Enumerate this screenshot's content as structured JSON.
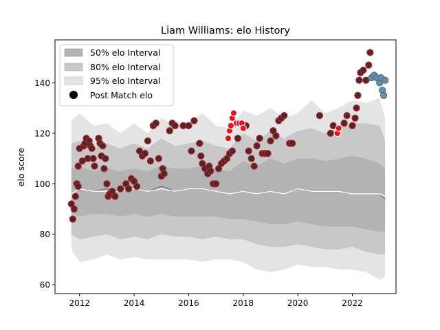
{
  "chart_data": {
    "type": "scatter",
    "title": "Liam Williams: elo History",
    "xlabel": "",
    "ylabel": "elo score",
    "xlim": [
      2011.1,
      2023.6
    ],
    "ylim": [
      56.5,
      157
    ],
    "x_ticks": [
      2012,
      2014,
      2016,
      2018,
      2020,
      2022
    ],
    "x_tick_labels": [
      "2012",
      "2014",
      "2016",
      "2018",
      "2020",
      "2022"
    ],
    "y_ticks": [
      60,
      80,
      100,
      120,
      140
    ],
    "y_tick_labels": [
      "60",
      "80",
      "100",
      "120",
      "140"
    ],
    "grid": false,
    "legend": {
      "placement": "top-left",
      "entries": [
        {
          "label": "50% elo Interval",
          "color": "#b3b3b3"
        },
        {
          "label": "80% elo Interval",
          "color": "#c8c8c8"
        },
        {
          "label": "95% elo Interval",
          "color": "#e4e4e4"
        },
        {
          "label": "Post Match elo",
          "color": "#000000"
        }
      ]
    },
    "bands": {
      "x": [
        2011.7,
        2012.0,
        2012.5,
        2013.0,
        2013.5,
        2014.0,
        2014.5,
        2015.0,
        2015.5,
        2016.0,
        2016.5,
        2017.0,
        2017.5,
        2018.0,
        2018.5,
        2019.0,
        2019.5,
        2020.0,
        2020.5,
        2021.0,
        2021.5,
        2022.0,
        2022.5,
        2023.0,
        2023.2
      ],
      "p95_upper": [
        125,
        128,
        123,
        124,
        120,
        124,
        120,
        126,
        123,
        124,
        128,
        123,
        122,
        129,
        127,
        130,
        126,
        128,
        133,
        128,
        130,
        133,
        132,
        134,
        126
      ],
      "p95_lower": [
        74,
        69,
        70,
        72,
        70,
        71,
        70,
        70,
        70,
        70,
        69,
        70,
        70,
        69,
        66,
        65,
        66,
        68,
        67,
        67,
        66,
        66,
        65,
        62,
        63
      ],
      "p80_upper": [
        116,
        117,
        114,
        116,
        114,
        116,
        114,
        118,
        115,
        116,
        117,
        115,
        114,
        120,
        117,
        121,
        118,
        121,
        122,
        120,
        122,
        124,
        124,
        123,
        117
      ],
      "p80_lower": [
        80,
        78,
        79,
        80,
        78,
        79,
        78,
        80,
        79,
        79,
        78,
        79,
        78,
        78,
        76,
        75,
        75,
        76,
        75,
        74,
        74,
        75,
        73,
        72,
        72
      ],
      "p50_upper": [
        106,
        107,
        105,
        106,
        105,
        106,
        105,
        107,
        106,
        106,
        107,
        106,
        105,
        109,
        107,
        110,
        108,
        110,
        110,
        109,
        110,
        111,
        110,
        108,
        106
      ],
      "p50_lower": [
        88,
        87,
        88,
        88,
        87,
        88,
        87,
        88,
        87,
        87,
        87,
        87,
        86,
        86,
        85,
        84,
        84,
        85,
        84,
        83,
        83,
        83,
        82,
        81,
        81
      ],
      "median": [
        96,
        98,
        97,
        98,
        97,
        98,
        97,
        99,
        97,
        98,
        98,
        97,
        96,
        97,
        96,
        97,
        96,
        98,
        97,
        97,
        97,
        96,
        96,
        96,
        94
      ],
      "mean": [
        96,
        98,
        97,
        97,
        97,
        98,
        97,
        98,
        97,
        98,
        98,
        97,
        96,
        97,
        96,
        97,
        96,
        98,
        97,
        97,
        97,
        96,
        96,
        96,
        95
      ]
    },
    "series": [
      {
        "color": "#4a2a2a",
        "points": [
          [
            2011.7,
            92
          ],
          [
            2011.75,
            86
          ],
          [
            2011.8,
            90
          ],
          [
            2011.85,
            95
          ],
          [
            2011.9,
            100
          ],
          [
            2011.95,
            99
          ],
          [
            2011.95,
            107
          ],
          [
            2012.0,
            114
          ],
          [
            2012.1,
            109
          ],
          [
            2012.15,
            115
          ],
          [
            2012.2,
            116
          ],
          [
            2012.25,
            118
          ],
          [
            2012.3,
            110
          ],
          [
            2012.35,
            117
          ],
          [
            2012.4,
            115
          ],
          [
            2012.45,
            114
          ],
          [
            2012.5,
            110
          ],
          [
            2012.55,
            107
          ],
          [
            2012.7,
            118
          ],
          [
            2012.75,
            116
          ],
          [
            2012.8,
            111
          ],
          [
            2012.85,
            115
          ],
          [
            2012.9,
            106
          ],
          [
            2012.95,
            110
          ],
          [
            2013.0,
            100
          ],
          [
            2013.05,
            95
          ],
          [
            2013.1,
            96
          ],
          [
            2013.2,
            97
          ],
          [
            2013.3,
            95
          ],
          [
            2013.5,
            98
          ],
          [
            2013.7,
            100
          ],
          [
            2013.8,
            98
          ],
          [
            2013.9,
            102
          ],
          [
            2014.0,
            101
          ],
          [
            2014.1,
            99
          ],
          [
            2014.2,
            113
          ],
          [
            2014.3,
            111
          ],
          [
            2014.4,
            112
          ],
          [
            2014.5,
            117
          ],
          [
            2014.6,
            109
          ],
          [
            2014.7,
            123
          ],
          [
            2014.8,
            124
          ],
          [
            2014.9,
            110
          ],
          [
            2015.0,
            103
          ],
          [
            2015.05,
            106
          ],
          [
            2015.1,
            104
          ],
          [
            2015.3,
            121
          ],
          [
            2015.4,
            124
          ],
          [
            2015.5,
            123
          ],
          [
            2015.8,
            123
          ],
          [
            2016.0,
            123
          ],
          [
            2016.1,
            113
          ],
          [
            2016.2,
            125
          ],
          [
            2016.4,
            116
          ],
          [
            2016.45,
            111
          ],
          [
            2016.5,
            108
          ],
          [
            2016.6,
            106
          ],
          [
            2016.7,
            104
          ],
          [
            2016.75,
            107
          ],
          [
            2016.8,
            105
          ],
          [
            2016.9,
            100
          ],
          [
            2017.0,
            100
          ],
          [
            2017.1,
            106
          ],
          [
            2017.2,
            108
          ],
          [
            2017.3,
            109
          ],
          [
            2017.4,
            110
          ],
          [
            2017.5,
            112
          ],
          [
            2017.6,
            113
          ],
          [
            2017.8,
            118
          ],
          [
            2018.0,
            122
          ],
          [
            2018.1,
            123
          ],
          [
            2018.2,
            113
          ],
          [
            2018.3,
            110
          ],
          [
            2018.4,
            107
          ],
          [
            2018.5,
            115
          ],
          [
            2018.6,
            118
          ],
          [
            2018.7,
            112
          ],
          [
            2018.8,
            112
          ],
          [
            2018.9,
            112
          ],
          [
            2019.0,
            117
          ],
          [
            2019.1,
            121
          ],
          [
            2019.2,
            119
          ],
          [
            2019.3,
            125
          ],
          [
            2019.4,
            126
          ],
          [
            2019.5,
            127
          ],
          [
            2019.7,
            116
          ],
          [
            2019.8,
            116
          ],
          [
            2020.8,
            127
          ],
          [
            2021.2,
            120
          ],
          [
            2021.3,
            123
          ],
          [
            2021.7,
            124
          ],
          [
            2021.8,
            127
          ],
          [
            2022.0,
            123
          ],
          [
            2022.1,
            126
          ],
          [
            2022.15,
            130
          ],
          [
            2022.2,
            135
          ],
          [
            2022.25,
            141
          ],
          [
            2022.3,
            144
          ],
          [
            2022.4,
            145
          ],
          [
            2022.5,
            141
          ],
          [
            2022.6,
            147
          ],
          [
            2022.65,
            152
          ]
        ]
      },
      {
        "color": "#e8101a",
        "points": [
          [
            2017.45,
            118
          ],
          [
            2017.5,
            121
          ],
          [
            2017.55,
            123
          ],
          [
            2017.6,
            126
          ],
          [
            2017.65,
            128
          ],
          [
            2017.75,
            124
          ],
          [
            2017.85,
            124
          ],
          [
            2017.95,
            124
          ],
          [
            2018.0,
            122
          ],
          [
            2021.45,
            120
          ],
          [
            2021.5,
            122
          ]
        ]
      },
      {
        "color": "#6a8fa8",
        "points": [
          [
            2022.7,
            142
          ],
          [
            2022.8,
            143
          ],
          [
            2022.9,
            142
          ],
          [
            2023.0,
            140
          ],
          [
            2023.05,
            142
          ],
          [
            2023.1,
            137
          ],
          [
            2023.15,
            135
          ],
          [
            2023.2,
            141
          ]
        ]
      }
    ]
  }
}
